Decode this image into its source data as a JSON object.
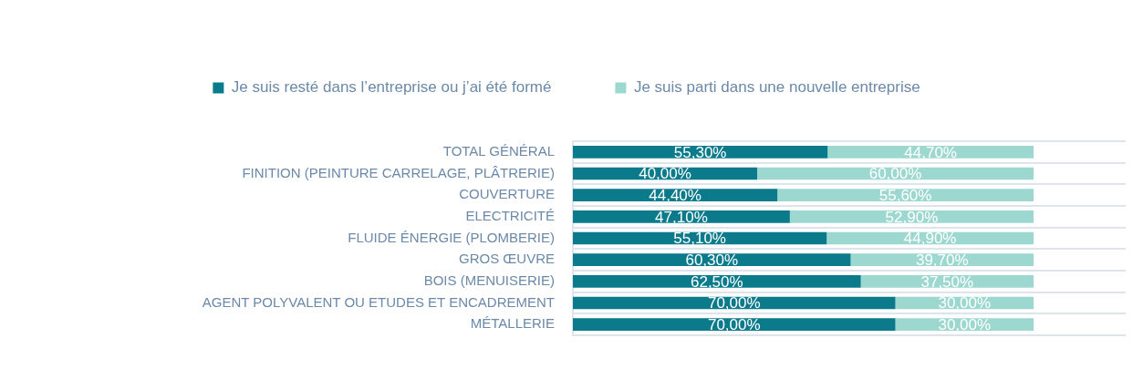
{
  "chart_data": {
    "type": "bar",
    "orientation": "horizontal",
    "stacked": true,
    "categories": [
      "TOTAL GÉNÉRAL",
      "FINITION (PEINTURE CARRELAGE, PLÂTRERIE)",
      "COUVERTURE",
      "ELECTRICITÉ",
      "FLUIDE ÉNERGIE (PLOMBERIE)",
      "GROS ŒUVRE",
      "BOIS (MENUISERIE)",
      "AGENT POLYVALENT OU ETUDES ET ENCADREMENT",
      "MÉTALLERIE"
    ],
    "series": [
      {
        "name": "Je suis resté dans l’entreprise ou j’ai été formé",
        "color": "#0b7b8c",
        "values": [
          55.3,
          40.0,
          44.4,
          47.1,
          55.1,
          60.3,
          62.5,
          70.0,
          70.0
        ],
        "value_labels": [
          "55,30%",
          "40,00%",
          "44,40%",
          "47,10%",
          "55,10%",
          "60,30%",
          "62,50%",
          "70,00%",
          "70,00%"
        ]
      },
      {
        "name": "Je suis parti dans une nouvelle entreprise",
        "color": "#9dd8d0",
        "values": [
          44.7,
          60.0,
          55.6,
          52.9,
          44.9,
          39.7,
          37.5,
          30.0,
          30.0
        ],
        "value_labels": [
          "44,70%",
          "60,00%",
          "55,60%",
          "52,90%",
          "44,90%",
          "39,70%",
          "37,50%",
          "30,00%",
          "30,00%"
        ]
      }
    ],
    "xlim": [
      0,
      120
    ],
    "tick_labels": "y",
    "grid": "y",
    "legend": "top"
  }
}
